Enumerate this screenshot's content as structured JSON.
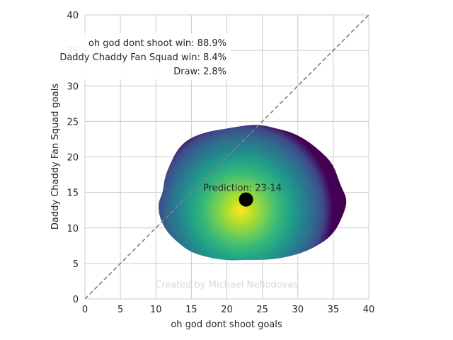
{
  "chart_data": {
    "type": "heatmap",
    "xlabel": "oh god dont shoot goals",
    "ylabel": "Daddy Chaddy Fan Squad goals",
    "xlim": [
      0,
      40
    ],
    "ylim": [
      0,
      40
    ],
    "xticks": [
      "0",
      "5",
      "10",
      "15",
      "20",
      "25",
      "30",
      "35",
      "40"
    ],
    "yticks": [
      "0",
      "5",
      "10",
      "15",
      "20",
      "25",
      "30",
      "35",
      "40"
    ],
    "grid": true,
    "diagonal_line": {
      "from": [
        0,
        0
      ],
      "to": [
        40,
        40
      ],
      "style": "dashed",
      "color": "#808080"
    },
    "density": {
      "colormap": "viridis",
      "center": [
        22,
        12.5
      ],
      "boundary": [
        [
          22.5,
          5.5
        ],
        [
          26,
          5.5
        ],
        [
          29,
          6
        ],
        [
          32,
          7
        ],
        [
          35,
          9
        ],
        [
          36.5,
          12
        ],
        [
          37,
          14
        ],
        [
          36,
          16
        ],
        [
          35,
          19
        ],
        [
          33,
          21
        ],
        [
          31,
          22.5
        ],
        [
          29,
          23.5
        ],
        [
          27,
          24
        ],
        [
          25,
          24.5
        ],
        [
          23,
          24.5
        ],
        [
          20,
          24
        ],
        [
          17,
          23.5
        ],
        [
          14.5,
          22.5
        ],
        [
          13,
          21
        ],
        [
          12,
          19
        ],
        [
          11.2,
          17
        ],
        [
          11,
          15
        ],
        [
          10.3,
          13.5
        ],
        [
          10.5,
          11.5
        ],
        [
          11.5,
          9.5
        ],
        [
          13,
          8
        ],
        [
          15,
          6.5
        ],
        [
          18,
          5.7
        ],
        [
          20.5,
          5.4
        ]
      ]
    },
    "prediction_point": {
      "x": 22.7,
      "y": 14,
      "label": "Prediction: 23-14",
      "color": "#000000"
    },
    "annotations": [
      "oh god dont shoot win: 88.9%",
      "Daddy Chaddy Fan Squad win: 8.4%",
      "Draw: 2.8%"
    ],
    "watermark": "Created by Michael Nefiodovas"
  }
}
